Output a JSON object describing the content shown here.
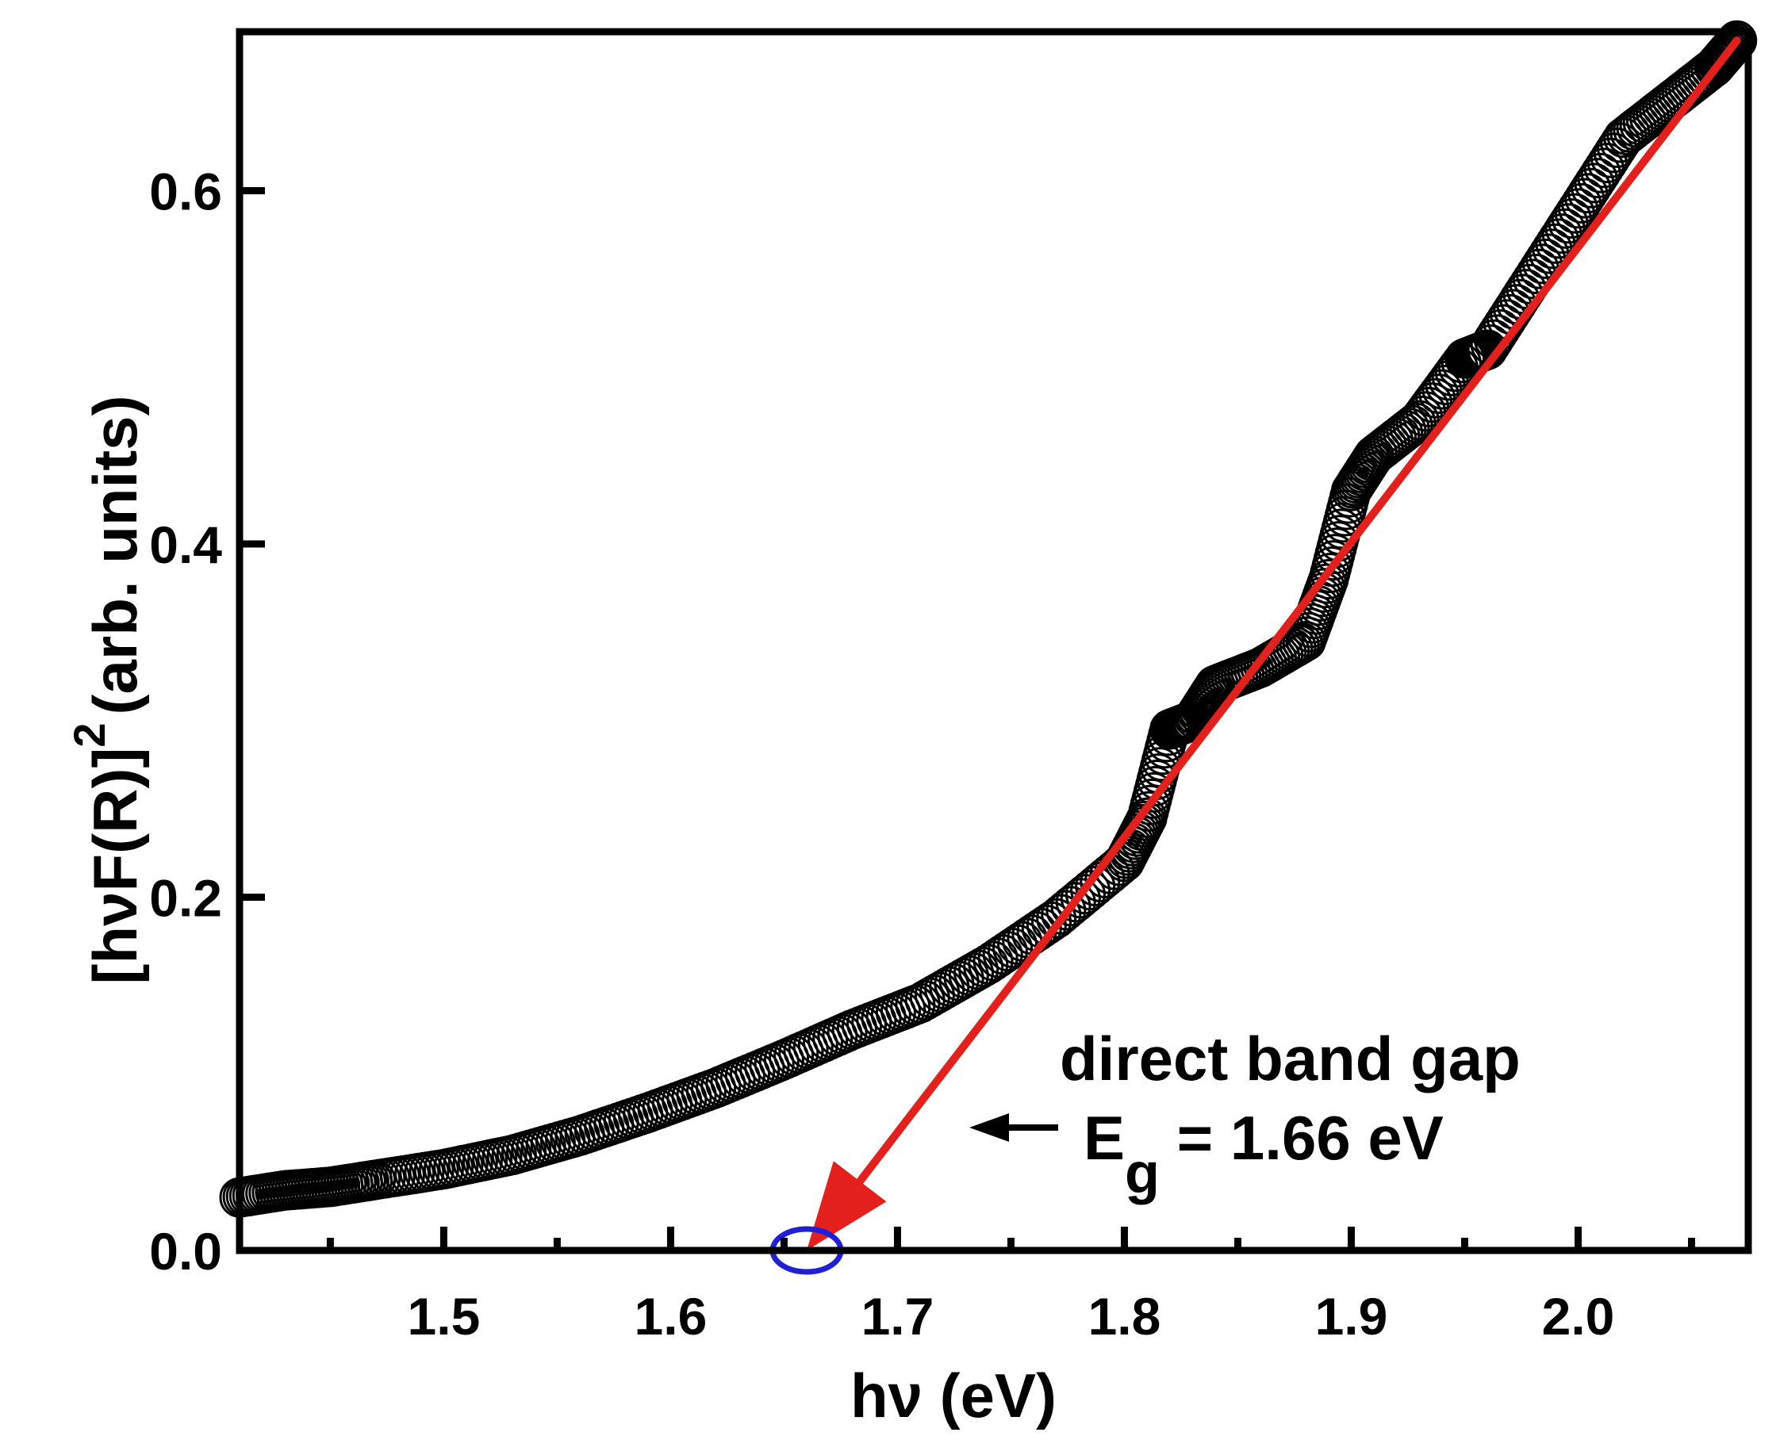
{
  "chart_data": {
    "type": "scatter",
    "title": "",
    "xlabel": "hν (eV)",
    "ylabel": {
      "prefix": "[hνF(R)]",
      "superscript": "2",
      "suffix": "(arb. units)"
    },
    "xlim": [
      1.41,
      2.075
    ],
    "ylim": [
      0.0,
      0.69
    ],
    "xticks": [
      1.5,
      1.6,
      1.7,
      1.8,
      1.9,
      2.0
    ],
    "xtick_labels": [
      "1.5",
      "1.6",
      "1.7",
      "1.8",
      "1.9",
      "2.0"
    ],
    "yticks": [
      0.0,
      0.2,
      0.4,
      0.6
    ],
    "ytick_labels": [
      "0.0",
      "0.2",
      "0.4",
      "0.6"
    ],
    "grid": false,
    "series": [
      {
        "name": "[hνF(R)]^2",
        "marker": "open-circle",
        "color": "#000000",
        "x": [
          1.41,
          1.43,
          1.45,
          1.47,
          1.5,
          1.53,
          1.56,
          1.59,
          1.62,
          1.65,
          1.68,
          1.71,
          1.74,
          1.77,
          1.8,
          1.81,
          1.82,
          1.83,
          1.84,
          1.86,
          1.88,
          1.89,
          1.9,
          1.91,
          1.93,
          1.95,
          1.96,
          1.98,
          2.0,
          2.02,
          2.04,
          2.06,
          2.07
        ],
        "y": [
          0.03,
          0.034,
          0.036,
          0.04,
          0.046,
          0.054,
          0.065,
          0.078,
          0.092,
          0.108,
          0.125,
          0.14,
          0.162,
          0.188,
          0.22,
          0.245,
          0.295,
          0.3,
          0.32,
          0.33,
          0.345,
          0.38,
          0.43,
          0.45,
          0.47,
          0.505,
          0.51,
          0.55,
          0.59,
          0.63,
          0.65,
          0.67,
          0.685
        ]
      }
    ],
    "fit_line": {
      "name": "linear fit",
      "color": "#e3201b",
      "x": [
        2.07,
        1.66
      ],
      "y": [
        0.685,
        0.0
      ],
      "arrowhead": "end"
    },
    "intercept_marker": {
      "x": 1.66,
      "y": 0.0,
      "color": "#1f1fd6",
      "shape": "ellipse"
    },
    "annotations": {
      "line1": "direct band gap",
      "line2_prefix": "E",
      "line2_subscript": "g",
      "line2_suffix": " = 1.66 eV",
      "arrow": "pointing-left"
    }
  }
}
